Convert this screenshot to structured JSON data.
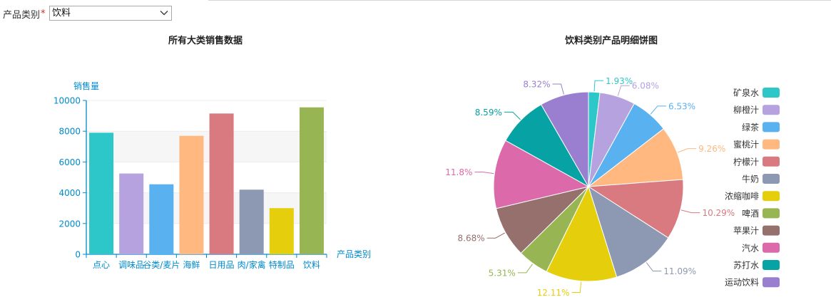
{
  "filter": {
    "label": "产品类别",
    "required_mark": "*",
    "selected": "饮料",
    "arrow_icon": "chevron-down-icon"
  },
  "colors": [
    "#2ec7c9",
    "#b6a2de",
    "#5ab1ef",
    "#ffb980",
    "#d87a80",
    "#8d98b3",
    "#e5cf0d",
    "#97b552",
    "#95706d",
    "#dc69aa",
    "#07a2a4",
    "#9a7fd1"
  ],
  "chart_data": [
    {
      "type": "bar",
      "title": "所有大类销售数据",
      "ylabel": "销售量",
      "xlabel": "产品类别",
      "ylim": [
        0,
        10000
      ],
      "yticks": [
        "0",
        "2000",
        "4000",
        "6000",
        "8000",
        "10000"
      ],
      "categories": [
        "点心",
        "调味品",
        "谷类/麦片",
        "海鲜",
        "日用品",
        "肉/家禽",
        "特制品",
        "饮料"
      ],
      "values": [
        7900,
        5250,
        4550,
        7700,
        9150,
        4200,
        3000,
        9550
      ],
      "grid": "horizontal bands",
      "legend": "none"
    },
    {
      "type": "pie",
      "title": "饮料类别产品明细饼图",
      "legend_position": "right",
      "labels": [
        "矿泉水",
        "柳橙汁",
        "绿茶",
        "蜜桃汁",
        "柠檬汁",
        "牛奶",
        "浓缩咖啡",
        "啤酒",
        "苹果汁",
        "汽水",
        "苏打水",
        "运动饮料"
      ],
      "values": [
        1.93,
        6.08,
        6.53,
        9.26,
        10.29,
        11.09,
        12.11,
        5.31,
        8.68,
        11.8,
        8.59,
        8.32
      ],
      "value_labels": [
        "1.93%",
        "6.08%",
        "6.53%",
        "9.26%",
        "10.29%",
        "11.09%",
        "12.11%",
        "5.31%",
        "8.68%",
        "11.8%",
        "8.59%",
        "8.32%"
      ]
    }
  ]
}
